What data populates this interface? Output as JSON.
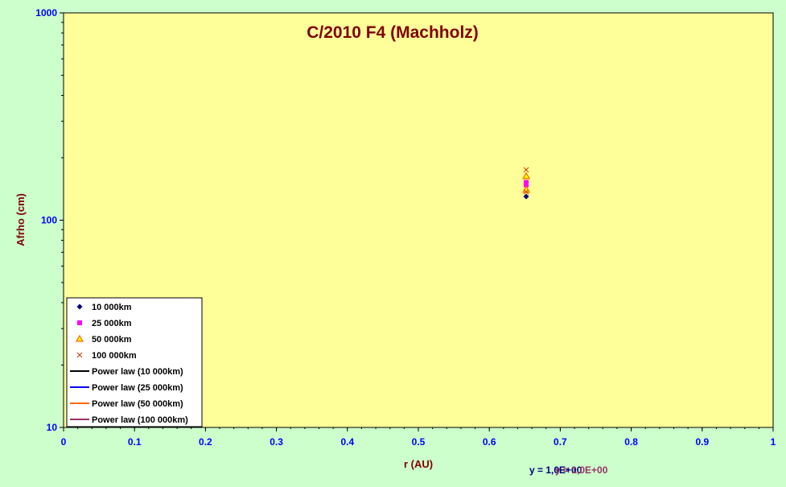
{
  "chart_data": {
    "type": "scatter",
    "title": "C/2010 F4 (Machholz)",
    "xlabel": "r (AU)",
    "ylabel": "Afrho (cm)",
    "xlim": [
      0,
      1
    ],
    "ylim": [
      10,
      1000
    ],
    "y_scale": "log",
    "x_ticks": [
      "0",
      "0.1",
      "0.2",
      "0.3",
      "0.4",
      "0.5",
      "0.6",
      "0.7",
      "0.8",
      "0.9",
      "1"
    ],
    "y_ticks": [
      "10",
      "100",
      "1000"
    ],
    "legend_position": "bottom-left",
    "series": [
      {
        "name": "10 000km",
        "marker": "diamond",
        "color": "#000080",
        "x": [
          0.652
        ],
        "y": [
          130
        ]
      },
      {
        "name": "25 000km",
        "marker": "square",
        "color": "#ff00ff",
        "x": [
          0.652,
          0.652
        ],
        "y": [
          148,
          152
        ]
      },
      {
        "name": "50 000km",
        "marker": "triangle",
        "color": "#ff6600",
        "x": [
          0.652,
          0.652
        ],
        "y": [
          140,
          163
        ]
      },
      {
        "name": "100 000km",
        "marker": "x",
        "color": "#cc3300",
        "x": [
          0.652,
          0.652
        ],
        "y": [
          137,
          175
        ]
      },
      {
        "name": "Power law (10 000km)",
        "marker": "line",
        "color": "#000000",
        "x": [],
        "y": []
      },
      {
        "name": "Power law (25 000km)",
        "marker": "line",
        "color": "#0000ff",
        "x": [],
        "y": []
      },
      {
        "name": "Power law (50 000km)",
        "marker": "line",
        "color": "#ff6600",
        "x": [],
        "y": []
      },
      {
        "name": "Power law (100 000km)",
        "marker": "line",
        "color": "#993366",
        "x": [],
        "y": []
      }
    ],
    "equations": [
      {
        "text": "y = 1,0E+00",
        "color": "#000080"
      },
      {
        "text": "y = 1,0E+00",
        "color": "#993366"
      }
    ],
    "colors": {
      "background": "#ccffcc",
      "plot_area": "#ffff99",
      "title": "#800000",
      "axis_label": "#800000",
      "tick_label": "#0000ff"
    }
  }
}
